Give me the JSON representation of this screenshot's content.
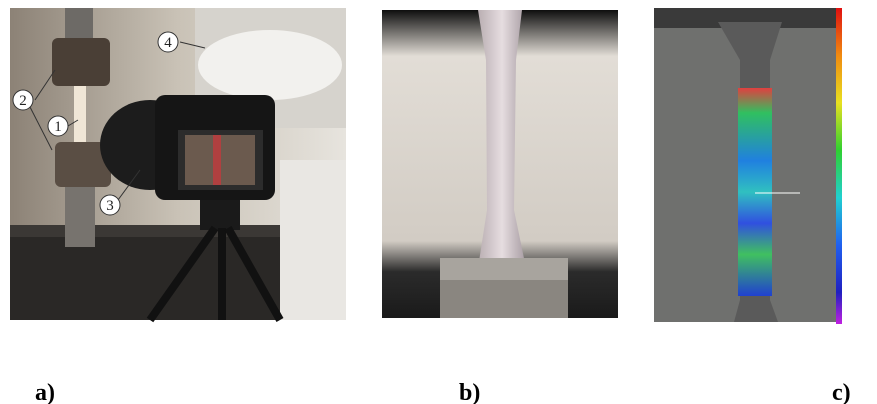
{
  "panels": [
    {
      "label": "a)",
      "callouts": [
        "1",
        "2",
        "3",
        "4"
      ]
    },
    {
      "label": "b)"
    },
    {
      "label": "c)"
    }
  ]
}
